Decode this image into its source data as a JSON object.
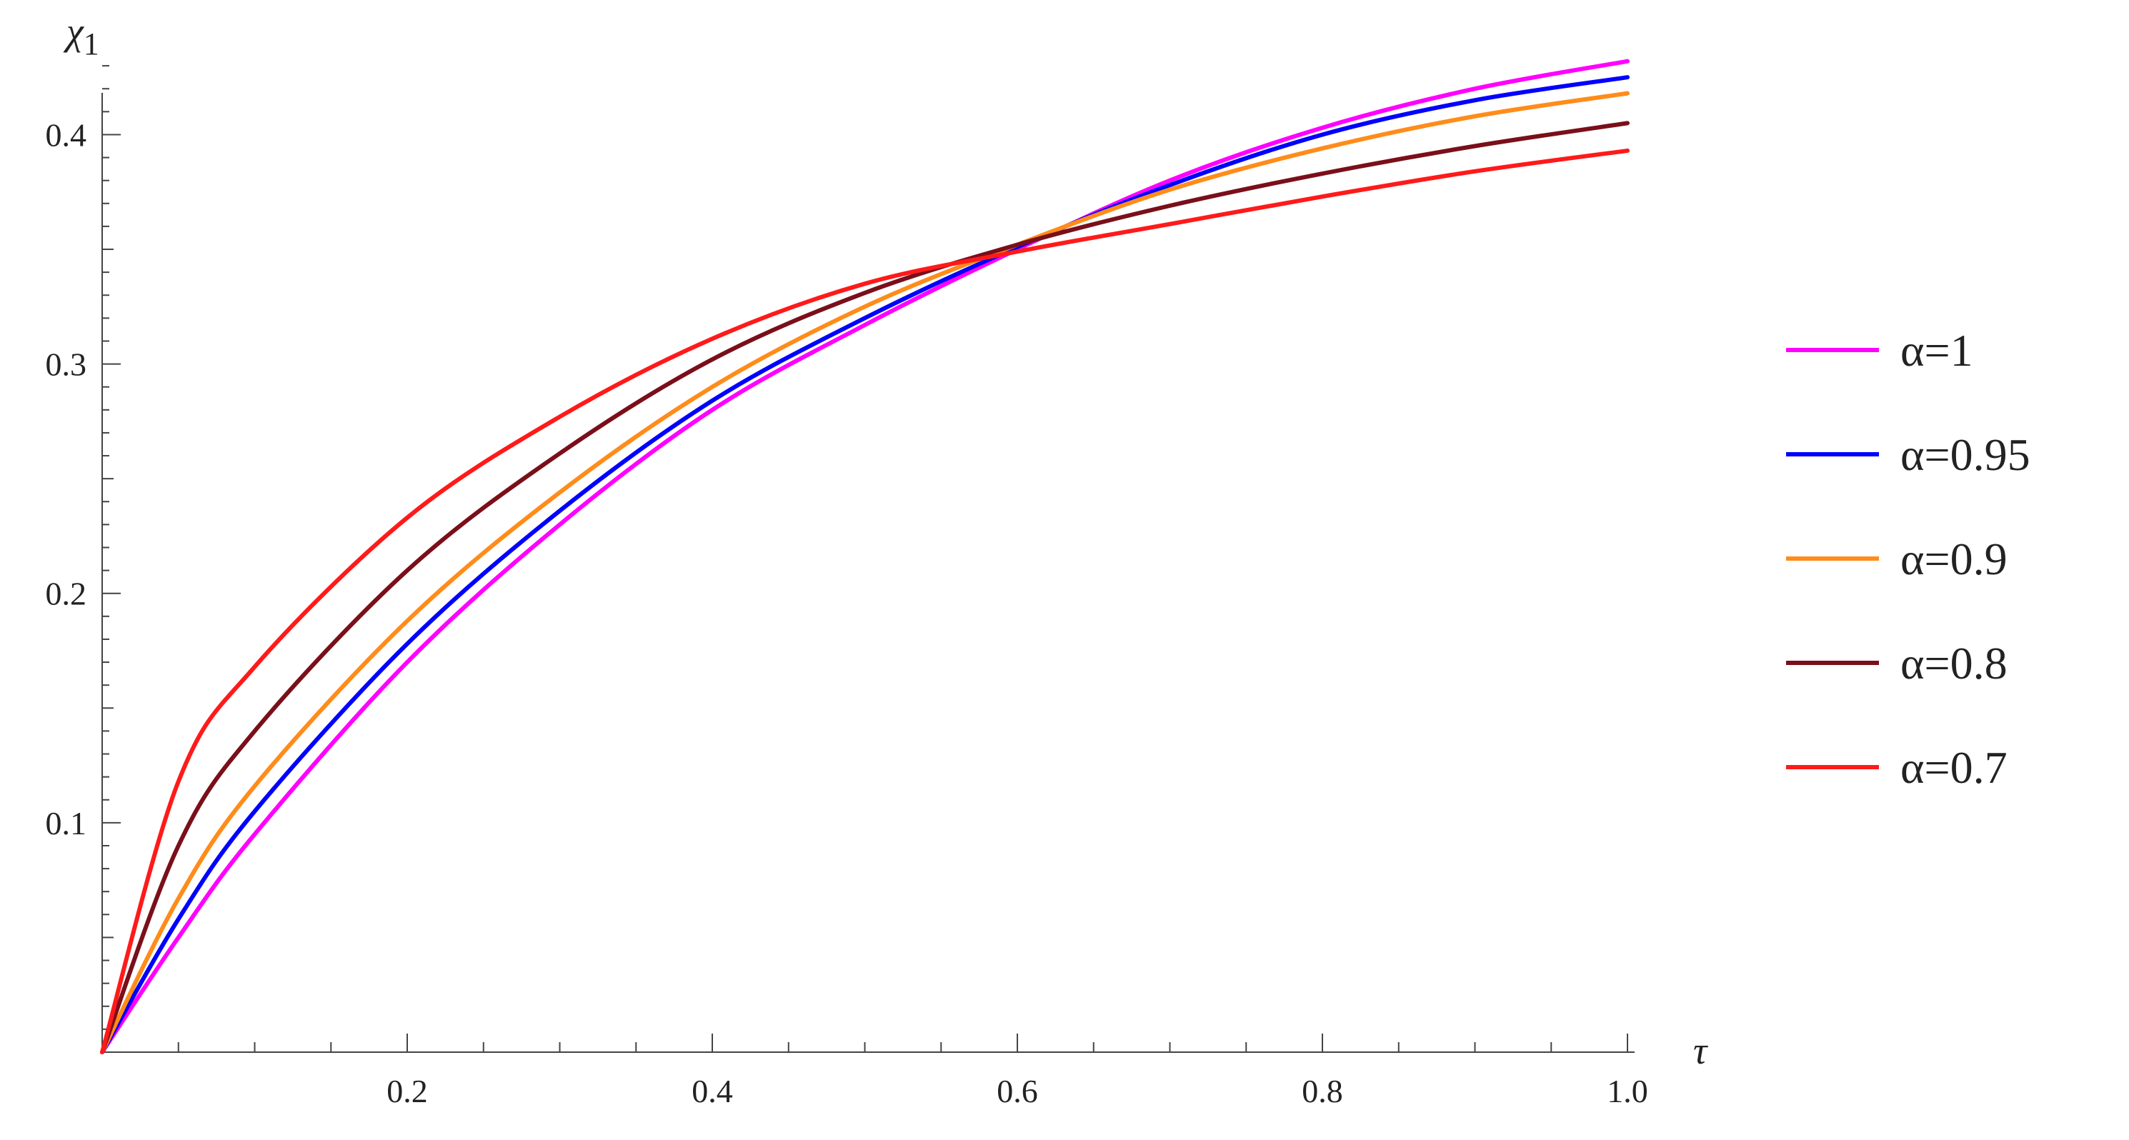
{
  "chart_data": {
    "type": "line",
    "xlabel": "τ",
    "ylabel": "χ1",
    "xlim": [
      0,
      1.0
    ],
    "ylim": [
      0,
      0.44
    ],
    "grid": false,
    "legend_position": "right",
    "x_ticks": [
      {
        "value": 0.2,
        "label": "0.2"
      },
      {
        "value": 0.4,
        "label": "0.4"
      },
      {
        "value": 0.6,
        "label": "0.6"
      },
      {
        "value": 0.8,
        "label": "0.8"
      },
      {
        "value": 1.0,
        "label": "1.0"
      }
    ],
    "y_ticks": [
      {
        "value": 0.1,
        "label": "0.1"
      },
      {
        "value": 0.2,
        "label": "0.2"
      },
      {
        "value": 0.3,
        "label": "0.3"
      },
      {
        "value": 0.4,
        "label": "0.4"
      }
    ],
    "x": [
      0,
      0.05,
      0.1,
      0.2,
      0.3,
      0.4,
      0.5,
      0.6,
      0.7,
      0.8,
      0.9,
      1.0
    ],
    "series": [
      {
        "name": "α=1",
        "color": "#ff00ff",
        "values": [
          0,
          0.05,
          0.095,
          0.17,
          0.23,
          0.28,
          0.317,
          0.35,
          0.38,
          0.403,
          0.42,
          0.432
        ]
      },
      {
        "name": " α=0.95",
        "color": "#0000ff",
        "values": [
          0,
          0.058,
          0.105,
          0.178,
          0.236,
          0.284,
          0.32,
          0.351,
          0.378,
          0.4,
          0.415,
          0.425
        ]
      },
      {
        "name": "α=0.9",
        "color": "#ff8c1a",
        "values": [
          0,
          0.067,
          0.116,
          0.188,
          0.244,
          0.29,
          0.325,
          0.352,
          0.376,
          0.394,
          0.408,
          0.418
        ]
      },
      {
        "name": "α=0.8",
        "color": "#7a0f1a",
        "values": [
          0,
          0.09,
          0.14,
          0.21,
          0.261,
          0.302,
          0.331,
          0.352,
          0.369,
          0.383,
          0.395,
          0.405
        ]
      },
      {
        "name": "α=0.7",
        "color": "#ff1a1a",
        "values": [
          0,
          0.118,
          0.168,
          0.233,
          0.277,
          0.311,
          0.335,
          0.349,
          0.361,
          0.373,
          0.384,
          0.393
        ]
      }
    ]
  }
}
